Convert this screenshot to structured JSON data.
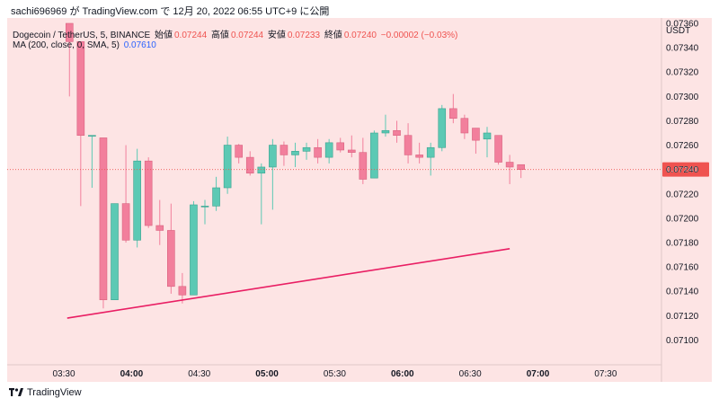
{
  "header": {
    "published_text": "sachi696969 が TradingView.com で 12月 20, 2022 06:55 UTC+9 に公開"
  },
  "legend": {
    "symbol": "Dogecoin / TetherUS, 5, BINANCE",
    "open_label": "始値",
    "open": "0.07244",
    "high_label": "高値",
    "high": "0.07244",
    "low_label": "安値",
    "low": "0.07233",
    "close_label": "終値",
    "close": "0.07240",
    "change": "−0.00002 (−0.03%)",
    "ma_label": "MA (200, close, 0, SMA, 5)",
    "ma_value": "0.07610"
  },
  "footer": {
    "brand": "TradingView"
  },
  "colors": {
    "background": "#fde4e4",
    "up": "#5cc9b4",
    "down": "#f27f9c",
    "trendline": "#e91e63",
    "last_price": "#ef5350",
    "axis_text": "#131722"
  },
  "chart_data": {
    "type": "candlestick",
    "currency": "USDT",
    "ylim": [
      0.0709,
      0.0736
    ],
    "y_ticks": [
      "0.07100",
      "0.07120",
      "0.07140",
      "0.07160",
      "0.07180",
      "0.07200",
      "0.07220",
      "0.07240",
      "0.07260",
      "0.07280",
      "0.07300",
      "0.07320",
      "0.07340",
      "0.07360"
    ],
    "x_ticks": [
      {
        "label": "03:30",
        "bold": false,
        "t": 0
      },
      {
        "label": "04:00",
        "bold": true,
        "t": 6
      },
      {
        "label": "04:30",
        "bold": false,
        "t": 12
      },
      {
        "label": "05:00",
        "bold": true,
        "t": 18
      },
      {
        "label": "05:30",
        "bold": false,
        "t": 24
      },
      {
        "label": "06:00",
        "bold": true,
        "t": 30
      },
      {
        "label": "06:30",
        "bold": false,
        "t": 36
      },
      {
        "label": "07:00",
        "bold": true,
        "t": 42
      },
      {
        "label": "07:30",
        "bold": false,
        "t": 48
      }
    ],
    "candles": [
      {
        "t": 0.5,
        "o": 0.0736,
        "h": 0.0736,
        "l": 0.073,
        "c": 0.07345
      },
      {
        "t": 1.5,
        "o": 0.07345,
        "h": 0.07345,
        "l": 0.0721,
        "c": 0.07268
      },
      {
        "t": 2.5,
        "o": 0.07268,
        "h": 0.07268,
        "l": 0.07225,
        "c": 0.07268
      },
      {
        "t": 3.5,
        "o": 0.07266,
        "h": 0.07266,
        "l": 0.07126,
        "c": 0.07133
      },
      {
        "t": 4.5,
        "o": 0.07133,
        "h": 0.07212,
        "l": 0.07133,
        "c": 0.07212
      },
      {
        "t": 5.5,
        "o": 0.07212,
        "h": 0.0726,
        "l": 0.0718,
        "c": 0.07182
      },
      {
        "t": 6.5,
        "o": 0.07182,
        "h": 0.07257,
        "l": 0.07176,
        "c": 0.07247
      },
      {
        "t": 7.5,
        "o": 0.07247,
        "h": 0.0725,
        "l": 0.07192,
        "c": 0.07194
      },
      {
        "t": 8.5,
        "o": 0.07194,
        "h": 0.07215,
        "l": 0.07178,
        "c": 0.0719
      },
      {
        "t": 9.5,
        "o": 0.0719,
        "h": 0.07212,
        "l": 0.07138,
        "c": 0.07144
      },
      {
        "t": 10.5,
        "o": 0.07144,
        "h": 0.07155,
        "l": 0.0713,
        "c": 0.07137
      },
      {
        "t": 11.5,
        "o": 0.07137,
        "h": 0.07214,
        "l": 0.07137,
        "c": 0.07211
      },
      {
        "t": 12.5,
        "o": 0.0721,
        "h": 0.07215,
        "l": 0.07195,
        "c": 0.0721
      },
      {
        "t": 13.5,
        "o": 0.0721,
        "h": 0.07234,
        "l": 0.07206,
        "c": 0.07225
      },
      {
        "t": 14.5,
        "o": 0.07225,
        "h": 0.07267,
        "l": 0.0722,
        "c": 0.0726
      },
      {
        "t": 15.5,
        "o": 0.0726,
        "h": 0.07261,
        "l": 0.07245,
        "c": 0.0725
      },
      {
        "t": 16.5,
        "o": 0.0725,
        "h": 0.07255,
        "l": 0.07235,
        "c": 0.07237
      },
      {
        "t": 17.5,
        "o": 0.07237,
        "h": 0.07245,
        "l": 0.07195,
        "c": 0.07242
      },
      {
        "t": 18.5,
        "o": 0.07242,
        "h": 0.07265,
        "l": 0.07207,
        "c": 0.0726
      },
      {
        "t": 19.5,
        "o": 0.0726,
        "h": 0.07263,
        "l": 0.07243,
        "c": 0.07252
      },
      {
        "t": 20.5,
        "o": 0.07252,
        "h": 0.07262,
        "l": 0.07242,
        "c": 0.07255
      },
      {
        "t": 21.5,
        "o": 0.07255,
        "h": 0.07262,
        "l": 0.07248,
        "c": 0.07258
      },
      {
        "t": 22.5,
        "o": 0.07258,
        "h": 0.07265,
        "l": 0.07245,
        "c": 0.0725
      },
      {
        "t": 23.5,
        "o": 0.0725,
        "h": 0.07265,
        "l": 0.07245,
        "c": 0.07262
      },
      {
        "t": 24.5,
        "o": 0.07262,
        "h": 0.07266,
        "l": 0.07254,
        "c": 0.07256
      },
      {
        "t": 25.5,
        "o": 0.07256,
        "h": 0.07268,
        "l": 0.0725,
        "c": 0.07254
      },
      {
        "t": 26.5,
        "o": 0.07254,
        "h": 0.07266,
        "l": 0.07228,
        "c": 0.07232
      },
      {
        "t": 27.5,
        "o": 0.07233,
        "h": 0.07272,
        "l": 0.07233,
        "c": 0.0727
      },
      {
        "t": 28.5,
        "o": 0.0727,
        "h": 0.07285,
        "l": 0.07267,
        "c": 0.07272
      },
      {
        "t": 29.5,
        "o": 0.07272,
        "h": 0.0728,
        "l": 0.07262,
        "c": 0.07268
      },
      {
        "t": 30.5,
        "o": 0.07268,
        "h": 0.07278,
        "l": 0.07245,
        "c": 0.07252
      },
      {
        "t": 31.5,
        "o": 0.07252,
        "h": 0.07262,
        "l": 0.07245,
        "c": 0.0725
      },
      {
        "t": 32.5,
        "o": 0.0725,
        "h": 0.07262,
        "l": 0.07235,
        "c": 0.07258
      },
      {
        "t": 33.5,
        "o": 0.07258,
        "h": 0.07293,
        "l": 0.07255,
        "c": 0.0729
      },
      {
        "t": 34.5,
        "o": 0.0729,
        "h": 0.07302,
        "l": 0.07278,
        "c": 0.07282
      },
      {
        "t": 35.5,
        "o": 0.07282,
        "h": 0.07285,
        "l": 0.07265,
        "c": 0.0727
      },
      {
        "t": 36.5,
        "o": 0.07274,
        "h": 0.07274,
        "l": 0.07253,
        "c": 0.07264
      },
      {
        "t": 37.5,
        "o": 0.07265,
        "h": 0.07275,
        "l": 0.0725,
        "c": 0.0727
      },
      {
        "t": 38.5,
        "o": 0.07268,
        "h": 0.07268,
        "l": 0.07244,
        "c": 0.07246
      },
      {
        "t": 39.5,
        "o": 0.07246,
        "h": 0.07252,
        "l": 0.07228,
        "c": 0.07242
      },
      {
        "t": 40.5,
        "o": 0.07244,
        "h": 0.07244,
        "l": 0.07233,
        "c": 0.0724
      }
    ],
    "trendline": [
      {
        "t": 0.3,
        "p": 0.07118
      },
      {
        "t": 39.5,
        "p": 0.07175
      }
    ],
    "last_price": 0.0724,
    "last_price_label": "0.07240"
  }
}
